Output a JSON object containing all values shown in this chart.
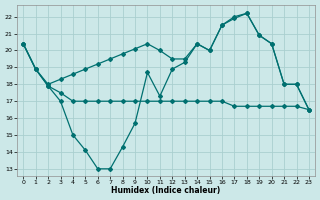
{
  "xlabel": "Humidex (Indice chaleur)",
  "bg_color": "#cce8e8",
  "grid_color": "#aacfcf",
  "line_color": "#007070",
  "xlim": [
    -0.5,
    23.5
  ],
  "ylim": [
    12.6,
    22.7
  ],
  "yticks": [
    13,
    14,
    15,
    16,
    17,
    18,
    19,
    20,
    21,
    22
  ],
  "xticks": [
    0,
    1,
    2,
    3,
    4,
    5,
    6,
    7,
    8,
    9,
    10,
    11,
    12,
    13,
    14,
    15,
    16,
    17,
    18,
    19,
    20,
    21,
    22,
    23
  ],
  "line_flat_x": [
    0,
    1,
    2,
    3,
    4,
    5,
    6,
    7,
    8,
    9,
    10,
    11,
    12,
    13,
    14,
    15,
    16,
    17,
    18,
    19,
    20,
    21,
    22,
    23
  ],
  "line_flat_y": [
    20.4,
    18.9,
    17.9,
    17.5,
    17.0,
    17.0,
    17.0,
    17.0,
    17.0,
    17.0,
    17.0,
    17.0,
    17.0,
    17.0,
    17.0,
    17.0,
    17.0,
    16.7,
    16.7,
    16.7,
    16.7,
    16.7,
    16.7,
    16.5
  ],
  "line_vshaped_x": [
    0,
    1,
    2,
    3,
    4,
    5,
    6,
    7,
    8,
    9,
    10,
    11,
    12,
    13,
    14,
    15,
    16,
    17,
    18,
    19,
    20,
    21,
    22,
    23
  ],
  "line_vshaped_y": [
    20.4,
    18.9,
    17.9,
    17.0,
    15.0,
    14.1,
    13.0,
    13.0,
    14.3,
    15.7,
    18.7,
    17.3,
    18.9,
    19.3,
    20.4,
    20.0,
    21.5,
    21.9,
    22.2,
    20.9,
    20.4,
    18.0,
    18.0,
    16.5
  ],
  "line_rising_x": [
    0,
    1,
    2,
    3,
    4,
    5,
    6,
    7,
    8,
    9,
    10,
    11,
    12,
    13,
    14,
    15,
    16,
    17,
    18,
    19,
    20,
    21,
    22,
    23
  ],
  "line_rising_y": [
    20.4,
    18.9,
    18.0,
    18.3,
    18.6,
    18.9,
    19.2,
    19.5,
    19.8,
    20.1,
    20.4,
    20.0,
    19.5,
    19.5,
    20.4,
    20.0,
    21.5,
    22.0,
    22.2,
    20.9,
    20.4,
    18.0,
    18.0,
    16.5
  ]
}
